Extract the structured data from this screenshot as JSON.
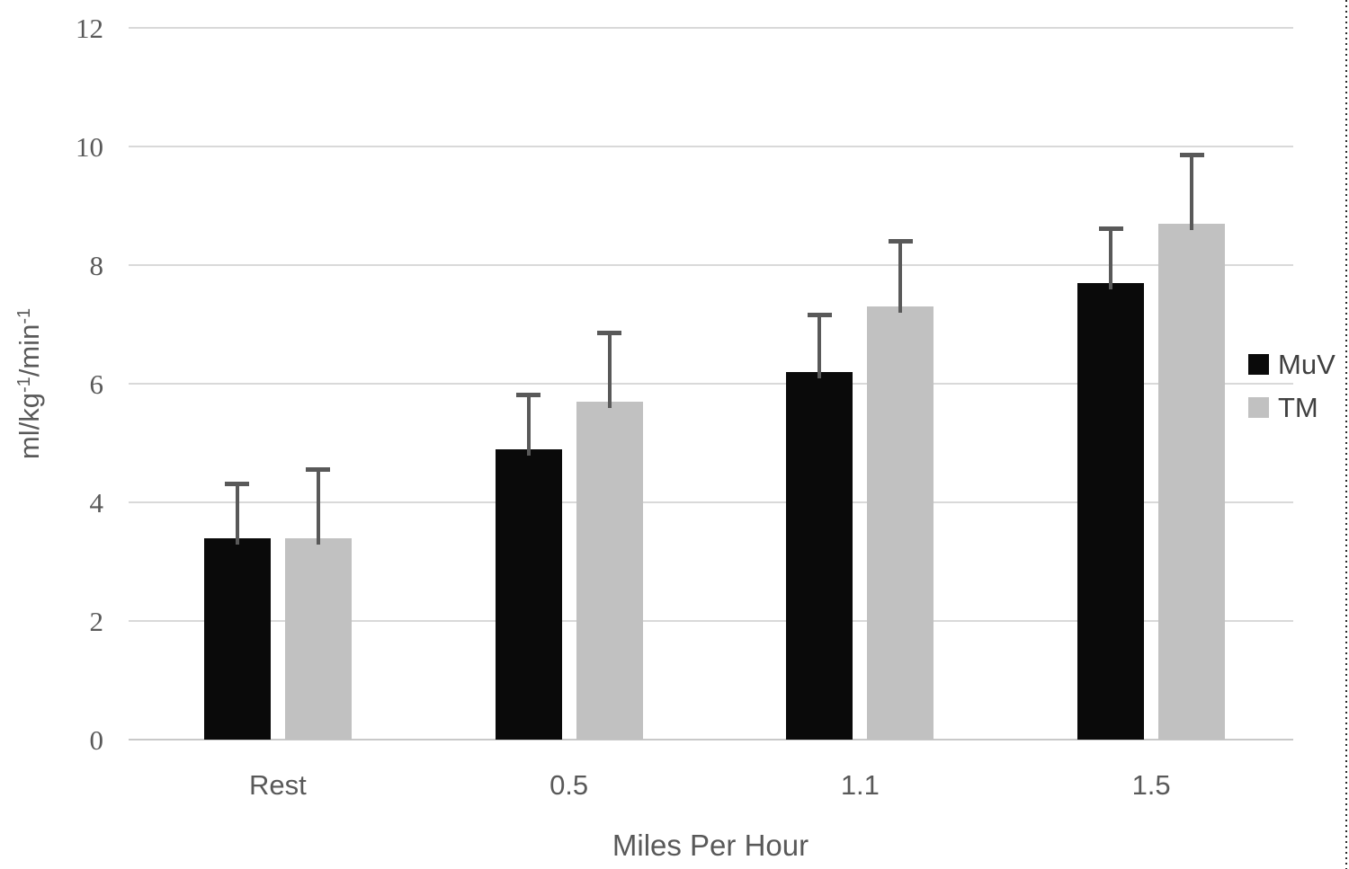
{
  "page": {
    "background": "#ffffff"
  },
  "chart_data": {
    "type": "bar",
    "title": "",
    "xlabel": "Miles Per Hour",
    "ylabel": "ml/kg-1/min-1",
    "ylabel_parts": [
      {
        "text": "ml/kg"
      },
      {
        "text": "-1",
        "sup": true
      },
      {
        "text": "/min"
      },
      {
        "text": "-1",
        "sup": true
      }
    ],
    "categories": [
      "Rest",
      "0.5",
      "1.1",
      "1.5"
    ],
    "series": [
      {
        "name": "MuV",
        "color": "#0a0a0a",
        "values": [
          3.4,
          4.9,
          6.2,
          7.7
        ],
        "error_plus": [
          0.9,
          0.9,
          0.95,
          0.9
        ]
      },
      {
        "name": "TM",
        "color": "#c1c1c1",
        "values": [
          3.4,
          5.7,
          7.3,
          8.7
        ],
        "error_plus": [
          1.15,
          1.15,
          1.1,
          1.15
        ]
      }
    ],
    "ylim": [
      0,
      12
    ],
    "yticks": [
      0,
      2,
      4,
      6,
      8,
      10,
      12
    ],
    "grid": "horizontal",
    "legend_position": "right",
    "legend_entries": [
      "MuV",
      "TM"
    ],
    "colors": {
      "gridline": "#d9d9d9",
      "axis_line": "#c9c9c9",
      "error_bar": "#595959",
      "tick_text": "#595959",
      "label_text": "#595959",
      "legend_text": "#404040"
    }
  }
}
